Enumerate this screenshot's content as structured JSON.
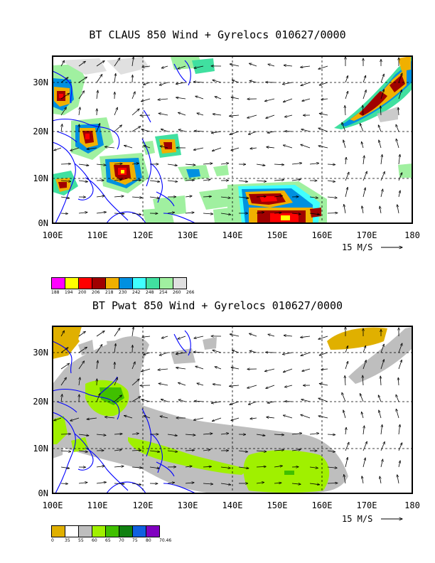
{
  "panels": [
    {
      "title": "BT CLAUS 850 Wind + Gyrelocs 010627/0000",
      "legend": {
        "labels": [
          "188",
          "194",
          "200",
          "206",
          "218",
          "230",
          "242",
          "248",
          "254",
          "260",
          "266"
        ],
        "colors": [
          "#ff00ff",
          "#ffff00",
          "#ff0000",
          "#a00000",
          "#f0b000",
          "#0090e0",
          "#40ffff",
          "#40e0a0",
          "#a0f0a0",
          "#e0e0e0"
        ]
      }
    },
    {
      "title": "BT Pwat 850 Wind + Gyrelocs 010627/0000",
      "legend": {
        "labels": [
          "0",
          "35",
          "55",
          "60",
          "65",
          "70",
          "75",
          "80",
          "70.46"
        ],
        "colors": [
          "#e0b000",
          "#ffffff",
          "#bebebe",
          "#a0f000",
          "#40c000",
          "#108010",
          "#1060e0",
          "#8000c0"
        ]
      }
    }
  ],
  "axes": {
    "x_labels": [
      "100E",
      "110E",
      "120E",
      "130E",
      "140E",
      "150E",
      "160E",
      "170E",
      "180"
    ],
    "y_labels": [
      "0N",
      "10N",
      "20N",
      "30N"
    ],
    "vector_ref": "15 M/S"
  },
  "colors": {
    "coast": "#0000ff",
    "frame": "#000000"
  }
}
